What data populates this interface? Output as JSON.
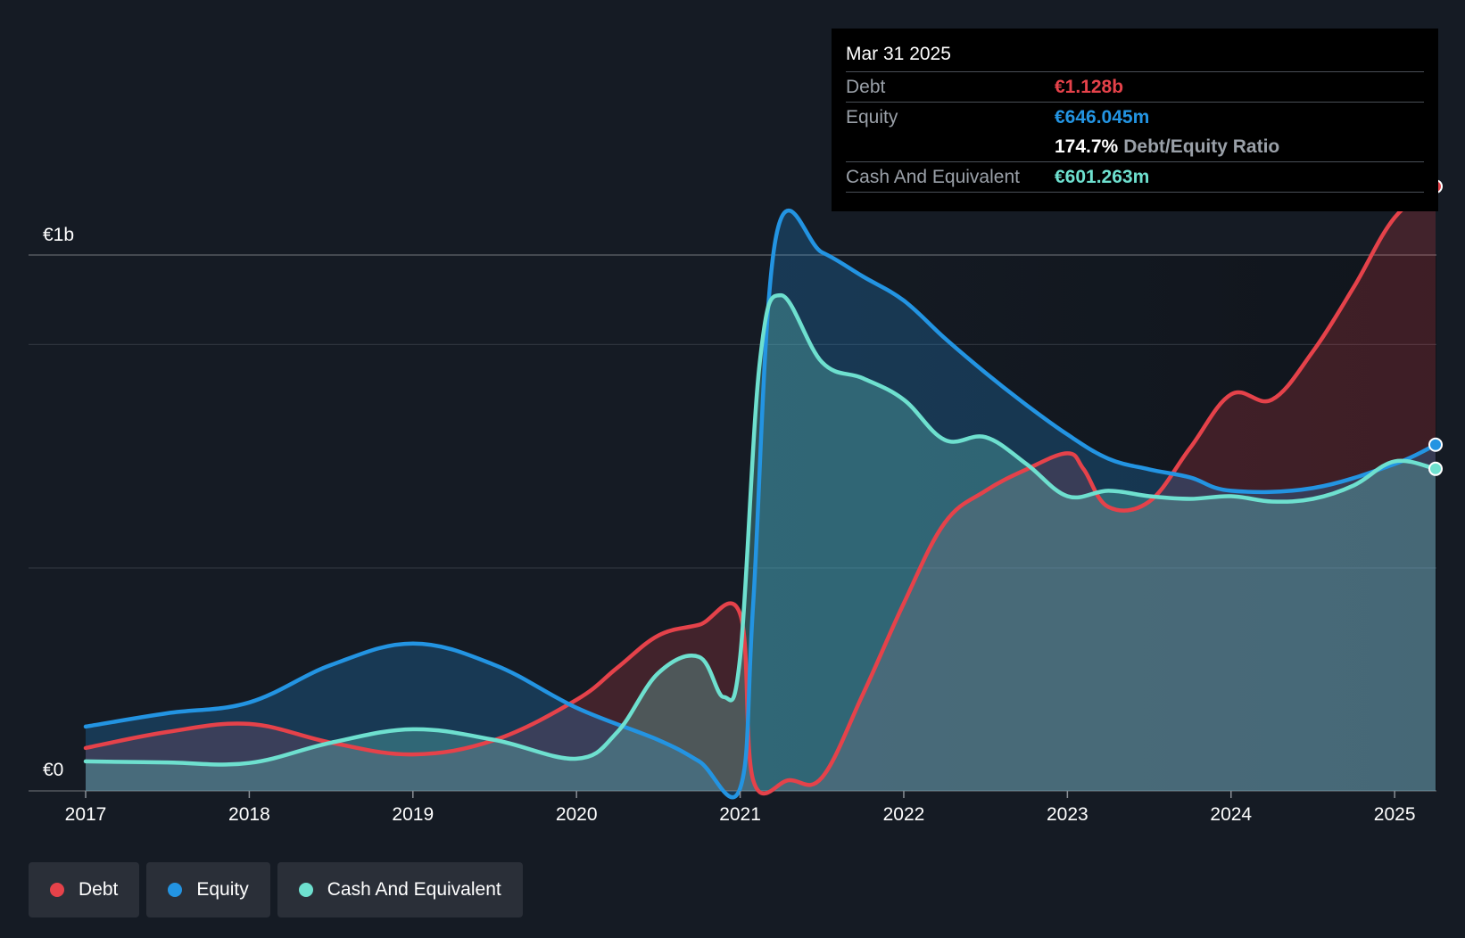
{
  "tooltip": {
    "date": "Mar 31 2025",
    "debt_label": "Debt",
    "debt_value": "€1.128b",
    "equity_label": "Equity",
    "equity_value": "€646.045m",
    "ratio_value": "174.7%",
    "ratio_label": "Debt/Equity Ratio",
    "cash_label": "Cash And Equivalent",
    "cash_value": "€601.263m"
  },
  "legend": {
    "debt": "Debt",
    "equity": "Equity",
    "cash": "Cash And Equivalent"
  },
  "colors": {
    "debt": "#e5424a",
    "equity": "#2394e2",
    "cash": "#6ee0cf"
  },
  "chart_data": {
    "type": "area",
    "title": "",
    "xlabel": "",
    "ylabel": "",
    "y_axis_labels": {
      "top": "€1b",
      "bottom": "€0"
    },
    "x_ticks": [
      "2017",
      "2018",
      "2019",
      "2020",
      "2021",
      "2022",
      "2023",
      "2024",
      "2025"
    ],
    "xlim": [
      2017.0,
      2025.25
    ],
    "ylim": [
      0,
      1.2
    ],
    "units": "€b",
    "series": [
      {
        "name": "Debt",
        "points": [
          [
            2017.0,
            0.08
          ],
          [
            2017.5,
            0.11
          ],
          [
            2018.0,
            0.125
          ],
          [
            2018.5,
            0.09
          ],
          [
            2019.0,
            0.068
          ],
          [
            2019.5,
            0.095
          ],
          [
            2020.0,
            0.17
          ],
          [
            2020.25,
            0.23
          ],
          [
            2020.5,
            0.29
          ],
          [
            2020.75,
            0.31
          ],
          [
            2021.0,
            0.33
          ],
          [
            2021.08,
            0.02
          ],
          [
            2021.3,
            0.02
          ],
          [
            2021.5,
            0.025
          ],
          [
            2021.75,
            0.18
          ],
          [
            2022.0,
            0.35
          ],
          [
            2022.25,
            0.5
          ],
          [
            2022.5,
            0.56
          ],
          [
            2022.75,
            0.6
          ],
          [
            2023.0,
            0.63
          ],
          [
            2023.1,
            0.6
          ],
          [
            2023.25,
            0.53
          ],
          [
            2023.5,
            0.54
          ],
          [
            2023.75,
            0.64
          ],
          [
            2024.0,
            0.74
          ],
          [
            2024.25,
            0.73
          ],
          [
            2024.5,
            0.82
          ],
          [
            2024.75,
            0.94
          ],
          [
            2025.0,
            1.07
          ],
          [
            2025.25,
            1.128
          ]
        ]
      },
      {
        "name": "Equity",
        "points": [
          [
            2017.0,
            0.12
          ],
          [
            2017.5,
            0.145
          ],
          [
            2018.0,
            0.165
          ],
          [
            2018.5,
            0.235
          ],
          [
            2019.0,
            0.275
          ],
          [
            2019.5,
            0.235
          ],
          [
            2020.0,
            0.155
          ],
          [
            2020.5,
            0.095
          ],
          [
            2020.75,
            0.055
          ],
          [
            2021.0,
            0.005
          ],
          [
            2021.08,
            0.35
          ],
          [
            2021.22,
            1.035
          ],
          [
            2021.5,
            1.005
          ],
          [
            2021.75,
            0.96
          ],
          [
            2022.0,
            0.915
          ],
          [
            2022.25,
            0.845
          ],
          [
            2022.5,
            0.78
          ],
          [
            2022.75,
            0.72
          ],
          [
            2023.0,
            0.665
          ],
          [
            2023.25,
            0.62
          ],
          [
            2023.5,
            0.6
          ],
          [
            2023.75,
            0.585
          ],
          [
            2024.0,
            0.56
          ],
          [
            2024.5,
            0.565
          ],
          [
            2025.0,
            0.61
          ],
          [
            2025.25,
            0.646
          ]
        ]
      },
      {
        "name": "Cash And Equivalent",
        "points": [
          [
            2017.0,
            0.055
          ],
          [
            2017.5,
            0.053
          ],
          [
            2018.0,
            0.052
          ],
          [
            2018.5,
            0.09
          ],
          [
            2019.0,
            0.115
          ],
          [
            2019.5,
            0.095
          ],
          [
            2020.0,
            0.06
          ],
          [
            2020.25,
            0.11
          ],
          [
            2020.5,
            0.22
          ],
          [
            2020.75,
            0.25
          ],
          [
            2020.9,
            0.175
          ],
          [
            2021.0,
            0.25
          ],
          [
            2021.12,
            0.8
          ],
          [
            2021.25,
            0.925
          ],
          [
            2021.5,
            0.8
          ],
          [
            2021.75,
            0.77
          ],
          [
            2022.0,
            0.73
          ],
          [
            2022.25,
            0.655
          ],
          [
            2022.5,
            0.66
          ],
          [
            2022.75,
            0.61
          ],
          [
            2023.0,
            0.55
          ],
          [
            2023.25,
            0.56
          ],
          [
            2023.5,
            0.55
          ],
          [
            2023.75,
            0.545
          ],
          [
            2024.0,
            0.55
          ],
          [
            2024.25,
            0.54
          ],
          [
            2024.5,
            0.545
          ],
          [
            2024.75,
            0.57
          ],
          [
            2025.0,
            0.615
          ],
          [
            2025.25,
            0.601
          ]
        ]
      }
    ]
  }
}
